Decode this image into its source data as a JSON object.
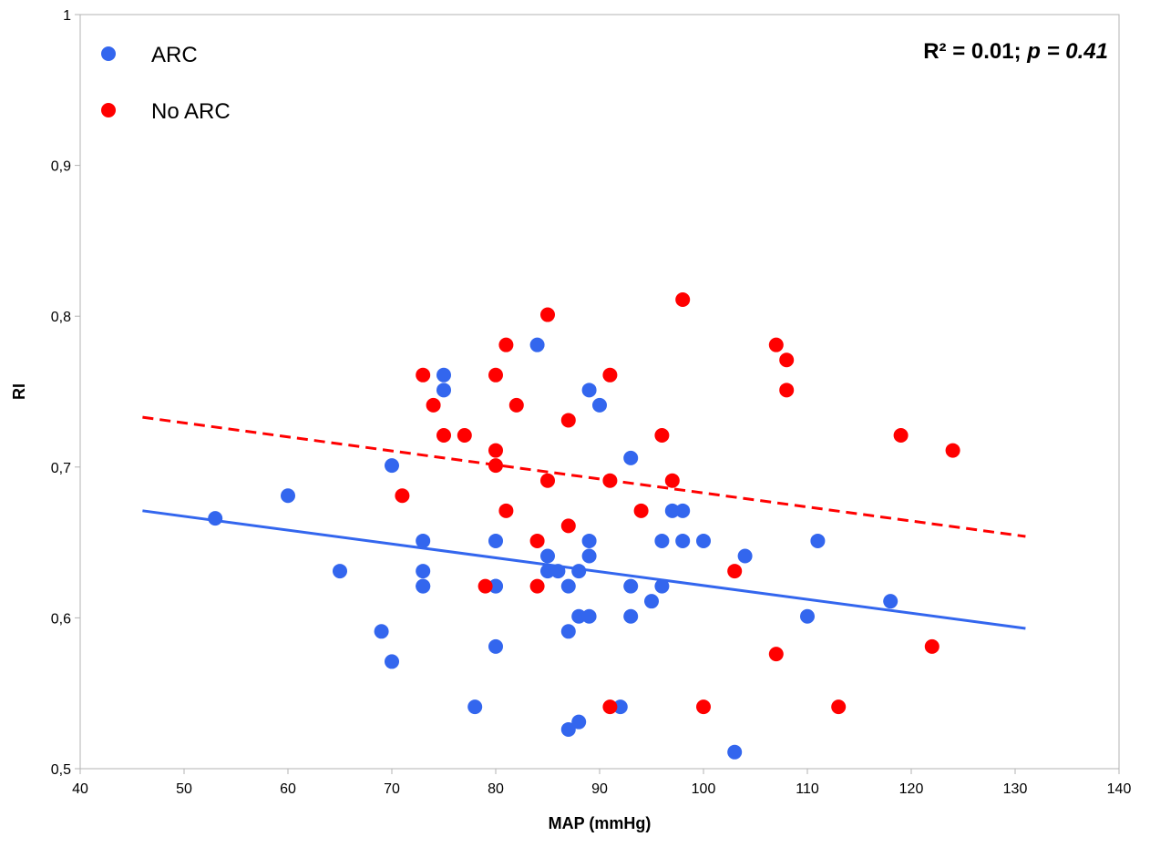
{
  "chart_data": {
    "type": "scatter",
    "xlabel": "MAP (mmHg)",
    "ylabel": "RI",
    "xlim": [
      40,
      140
    ],
    "ylim": [
      0.5,
      1
    ],
    "x_ticks": [
      "40",
      "50",
      "60",
      "70",
      "80",
      "90",
      "100",
      "110",
      "120",
      "130",
      "140"
    ],
    "y_ticks": [
      "0,5",
      "0,6",
      "0,7",
      "0,8",
      "0,9",
      "1"
    ],
    "grid": false,
    "legend_position": "top-left",
    "annotation": {
      "prefix": "R² = 0.01; ",
      "p_part": "p = 0.41"
    },
    "series": [
      {
        "name": "ARC",
        "color": "#3366ee",
        "points": [
          [
            53,
            0.666
          ],
          [
            60,
            0.681
          ],
          [
            65,
            0.631
          ],
          [
            69,
            0.591
          ],
          [
            70,
            0.701
          ],
          [
            70,
            0.571
          ],
          [
            73,
            0.651
          ],
          [
            73,
            0.631
          ],
          [
            73,
            0.621
          ],
          [
            73,
            0.621
          ],
          [
            75,
            0.761
          ],
          [
            75,
            0.751
          ],
          [
            78,
            0.541
          ],
          [
            80,
            0.651
          ],
          [
            80,
            0.621
          ],
          [
            80,
            0.621
          ],
          [
            80,
            0.581
          ],
          [
            84,
            0.781
          ],
          [
            85,
            0.641
          ],
          [
            85,
            0.631
          ],
          [
            86,
            0.631
          ],
          [
            87,
            0.621
          ],
          [
            87,
            0.591
          ],
          [
            87,
            0.526
          ],
          [
            88,
            0.631
          ],
          [
            88,
            0.601
          ],
          [
            88,
            0.531
          ],
          [
            89,
            0.751
          ],
          [
            89,
            0.651
          ],
          [
            89,
            0.641
          ],
          [
            89,
            0.601
          ],
          [
            90,
            0.741
          ],
          [
            92,
            0.541
          ],
          [
            93,
            0.706
          ],
          [
            93,
            0.621
          ],
          [
            93,
            0.601
          ],
          [
            95,
            0.611
          ],
          [
            96,
            0.651
          ],
          [
            96,
            0.621
          ],
          [
            97,
            0.671
          ],
          [
            98,
            0.671
          ],
          [
            98,
            0.651
          ],
          [
            100,
            0.651
          ],
          [
            103,
            0.511
          ],
          [
            104,
            0.641
          ],
          [
            110,
            0.601
          ],
          [
            111,
            0.651
          ],
          [
            118,
            0.611
          ]
        ],
        "trendline": {
          "x": [
            46,
            131
          ],
          "y": [
            0.671,
            0.593
          ],
          "style": "solid"
        }
      },
      {
        "name": "No ARC",
        "color": "#ff0000",
        "points": [
          [
            71,
            0.681
          ],
          [
            73,
            0.761
          ],
          [
            74,
            0.741
          ],
          [
            75,
            0.721
          ],
          [
            77,
            0.721
          ],
          [
            79,
            0.621
          ],
          [
            80,
            0.761
          ],
          [
            80,
            0.711
          ],
          [
            80,
            0.701
          ],
          [
            81,
            0.781
          ],
          [
            81,
            0.671
          ],
          [
            82,
            0.741
          ],
          [
            84,
            0.651
          ],
          [
            84,
            0.621
          ],
          [
            85,
            0.801
          ],
          [
            85,
            0.691
          ],
          [
            87,
            0.731
          ],
          [
            87,
            0.661
          ],
          [
            91,
            0.761
          ],
          [
            91,
            0.691
          ],
          [
            91,
            0.541
          ],
          [
            94,
            0.671
          ],
          [
            96,
            0.721
          ],
          [
            97,
            0.691
          ],
          [
            98,
            0.811
          ],
          [
            100,
            0.541
          ],
          [
            103,
            0.631
          ],
          [
            107,
            0.781
          ],
          [
            107,
            0.576
          ],
          [
            108,
            0.771
          ],
          [
            108,
            0.751
          ],
          [
            113,
            0.541
          ],
          [
            119,
            0.721
          ],
          [
            122,
            0.581
          ],
          [
            124,
            0.711
          ]
        ],
        "trendline": {
          "x": [
            46,
            131
          ],
          "y": [
            0.733,
            0.654
          ],
          "style": "dashed"
        }
      }
    ]
  }
}
